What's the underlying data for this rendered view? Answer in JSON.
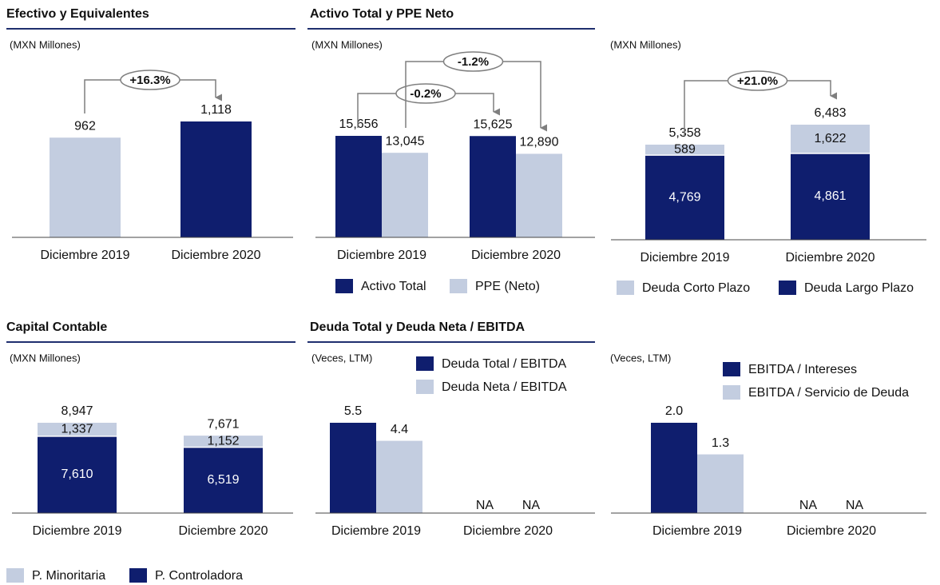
{
  "chart_data": [
    {
      "type": "bar",
      "title": "Efectivo y Equivalentes",
      "subtitle": "(MXN Millones)",
      "categories": [
        "Diciembre 2019",
        "Diciembre 2020"
      ],
      "values": [
        962,
        1118
      ],
      "value_labels": [
        "962",
        "1,118"
      ],
      "colors": [
        "#c3cde0",
        "#0f1e6e"
      ],
      "annotations": [
        {
          "text": "+16.3%"
        }
      ]
    },
    {
      "type": "grouped_bar",
      "title": "Activo  Total y PPE Neto",
      "subtitle": "(MXN Millones)",
      "categories": [
        "Diciembre 2019",
        "Diciembre 2020"
      ],
      "series": [
        {
          "name": "Activo Total",
          "color": "#0f1e6e",
          "values": [
            15656,
            15625
          ],
          "value_labels": [
            "15,656",
            "15,625"
          ]
        },
        {
          "name": "PPE (Neto)",
          "color": "#c3cde0",
          "values": [
            13045,
            12890
          ],
          "value_labels": [
            "13,045",
            "12,890"
          ]
        }
      ],
      "annotations": [
        {
          "text": "-0.2%"
        },
        {
          "text": "-1.2%"
        }
      ]
    },
    {
      "type": "stacked_bar",
      "subtitle": "(MXN Millones)",
      "categories": [
        "Diciembre 2019",
        "Diciembre 2020"
      ],
      "series": [
        {
          "name": "Deuda Corto Plazo",
          "color": "#c3cde0",
          "values": [
            589,
            1622
          ],
          "value_labels": [
            "589",
            "1,622"
          ]
        },
        {
          "name": "Deuda Largo Plazo",
          "color": "#0f1e6e",
          "values": [
            4769,
            4861
          ],
          "value_labels": [
            "4,769",
            "4,861"
          ]
        }
      ],
      "totals": [
        5358,
        6483
      ],
      "total_labels": [
        "5,358",
        "6,483"
      ],
      "annotations": [
        {
          "text": "+21.0%"
        }
      ]
    },
    {
      "type": "stacked_bar",
      "title": "Capital  Contable",
      "subtitle": "(MXN Millones)",
      "categories": [
        "Diciembre 2019",
        "Diciembre 2020"
      ],
      "series": [
        {
          "name": "P. Minoritaria",
          "color": "#c3cde0",
          "values": [
            1337,
            1152
          ],
          "value_labels": [
            "1,337",
            "1,152"
          ]
        },
        {
          "name": "P. Controladora",
          "color": "#0f1e6e",
          "values": [
            7610,
            6519
          ],
          "value_labels": [
            "7,610",
            "6,519"
          ]
        }
      ],
      "totals": [
        8947,
        7671
      ],
      "total_labels": [
        "8,947",
        "7,671"
      ]
    },
    {
      "type": "grouped_bar",
      "title": "Deuda Total y Deuda Neta / EBITDA",
      "subtitle": "(Veces,  LTM)",
      "categories": [
        "Diciembre 2019",
        "Diciembre 2020"
      ],
      "series": [
        {
          "name": "Deuda Total / EBITDA",
          "color": "#0f1e6e",
          "values": [
            5.5,
            null
          ],
          "value_labels": [
            "5.5",
            "NA"
          ]
        },
        {
          "name": "Deuda Neta / EBITDA",
          "color": "#c3cde0",
          "values": [
            4.4,
            null
          ],
          "value_labels": [
            "4.4",
            "NA"
          ]
        }
      ]
    },
    {
      "type": "grouped_bar",
      "subtitle": "(Veces,  LTM)",
      "categories": [
        "Diciembre 2019",
        "Diciembre 2020"
      ],
      "series": [
        {
          "name": "EBITDA / Intereses",
          "color": "#0f1e6e",
          "values": [
            2,
            null
          ],
          "value_labels": [
            "2.0",
            "NA"
          ]
        },
        {
          "name": "EBITDA / Servicio de Deuda",
          "color": "#c3cde0",
          "values": [
            1.3,
            null
          ],
          "value_labels": [
            "1.3",
            "NA"
          ]
        }
      ]
    }
  ]
}
